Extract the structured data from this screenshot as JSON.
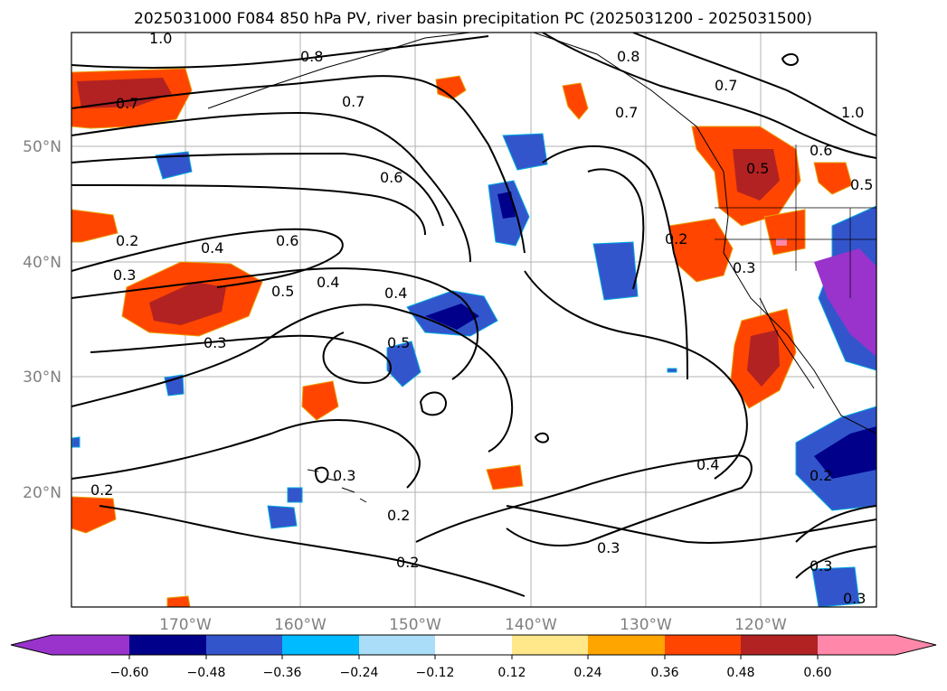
{
  "title": "2025031000 F084 850 hPa PV, river basin precipitation PC (2025031200 - 2025031500)",
  "map": {
    "lat_labels": [
      "50°N",
      "40°N",
      "30°N",
      "20°N"
    ],
    "lon_labels": [
      "170°W",
      "160°W",
      "150°W",
      "140°W",
      "130°W",
      "120°W"
    ],
    "contour_labels": [
      "1.0",
      "0.8",
      "0.7",
      "0.7",
      "0.8",
      "0.7",
      "0.6",
      "0.5",
      "0.2",
      "0.6",
      "0.4",
      "0.3",
      "0.6",
      "0.5",
      "0.4",
      "0.4",
      "0.5",
      "0.3",
      "0.2",
      "0.3",
      "0.5",
      "0.4",
      "0.2",
      "0.2",
      "0.2",
      "0.3",
      "0.3",
      "0.3",
      "1.0",
      "0.7",
      "0.3",
      "0.2"
    ]
  },
  "colorbar": {
    "colors": [
      "#9933cc",
      "#00008b",
      "#3355cc",
      "#00bbff",
      "#aaddf7",
      "#ffffff",
      "#ffe88a",
      "#ffa500",
      "#ff4500",
      "#b22222",
      "#ff88aa"
    ],
    "tick_labels": [
      "−0.60",
      "−0.48",
      "−0.36",
      "−0.24",
      "−0.12",
      "0.12",
      "0.24",
      "0.36",
      "0.48",
      "0.60"
    ]
  }
}
